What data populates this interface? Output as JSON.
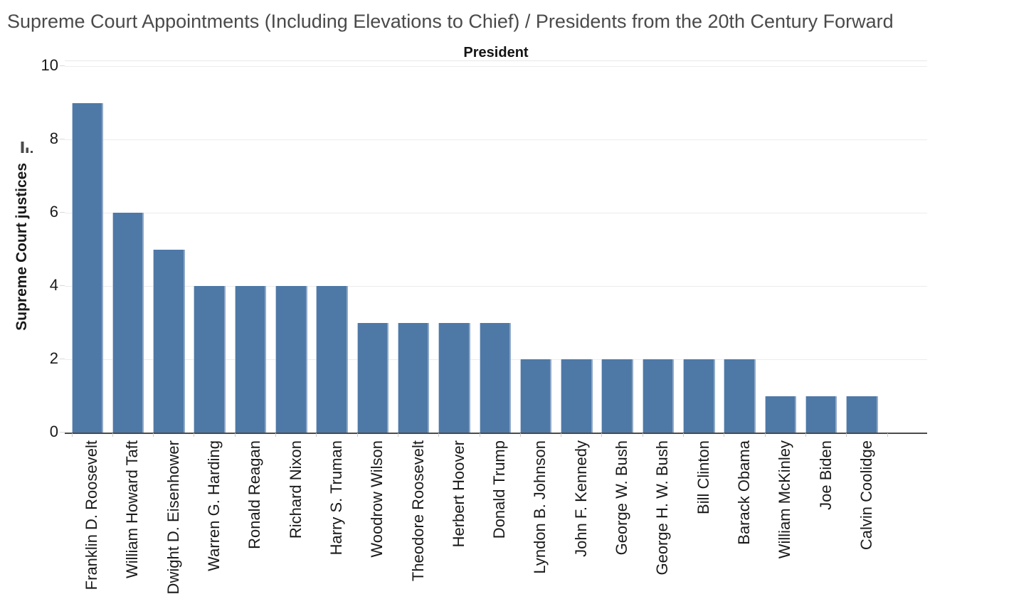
{
  "title": "Supreme Court Appointments (Including Elevations to Chief) / Presidents from the 20th Century Forward",
  "column_header": "President",
  "y_axis": {
    "title": "Supreme Court justices",
    "ticks": [
      0,
      2,
      4,
      6,
      8,
      10
    ],
    "sort_icon": "sort-descending-icon"
  },
  "colors": {
    "bar": "#4e79a7",
    "gridline": "#ececec",
    "axis_line": "#4b4b4b",
    "title_text": "#4a4a4a",
    "label_text": "#1a1a1a"
  },
  "chart_data": {
    "type": "bar",
    "title": "Supreme Court Appointments (Including Elevations to Chief) / Presidents from the 20th Century Forward",
    "xlabel": "President",
    "ylabel": "Supreme Court justices",
    "ylim": [
      0,
      10
    ],
    "yticks": [
      0,
      2,
      4,
      6,
      8,
      10
    ],
    "grid": "horizontal",
    "legend": "none",
    "sort": "descending",
    "categories": [
      "Franklin D. Roosevelt",
      "William Howard Taft",
      "Dwight D. Eisenhower",
      "Warren G. Harding",
      "Ronald Reagan",
      "Richard Nixon",
      "Harry S. Truman",
      "Woodrow Wilson",
      "Theodore Roosevelt",
      "Herbert Hoover",
      "Donald Trump",
      "Lyndon B. Johnson",
      "John F. Kennedy",
      "George W. Bush",
      "George H. W. Bush",
      "Bill Clinton",
      "Barack Obama",
      "William McKinley",
      "Joe Biden",
      "Calvin Coolidge"
    ],
    "values": [
      9,
      6,
      5,
      4,
      4,
      4,
      4,
      3,
      3,
      3,
      3,
      2,
      2,
      2,
      2,
      2,
      2,
      1,
      1,
      1
    ]
  }
}
